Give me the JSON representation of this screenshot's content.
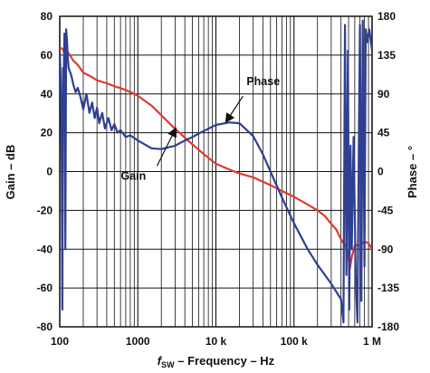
{
  "chart_data": {
    "type": "line",
    "title": "",
    "x_scale": "log",
    "xlim": [
      100,
      1000000
    ],
    "x_tick_values": [
      100,
      1000,
      10000,
      100000,
      1000000
    ],
    "x_tick_labels": [
      "100",
      "1000",
      "10 k",
      "100 k",
      "1 M"
    ],
    "xlabel_prefix": "f",
    "xlabel_sub": "SW",
    "xlabel_rest": " – Frequency – Hz",
    "ylabel_left": "Gain – dB",
    "ylim_left": [
      -80,
      80
    ],
    "yticks_left": [
      "80",
      "60",
      "40",
      "20",
      "0",
      "-20",
      "-40",
      "-60",
      "-80"
    ],
    "ylabel_right": "Phase – °",
    "ylim_right": [
      -180,
      180
    ],
    "yticks_right": [
      "180",
      "135",
      "90",
      "45",
      "0",
      "-45",
      "-90",
      "-135",
      "-180"
    ],
    "grid": true,
    "series": [
      {
        "name": "Gain",
        "axis": "left",
        "color": "#e03a2f",
        "points": [
          [
            100,
            64
          ],
          [
            110,
            63
          ],
          [
            120,
            59
          ],
          [
            130,
            61
          ],
          [
            150,
            57
          ],
          [
            170,
            55
          ],
          [
            200,
            51
          ],
          [
            250,
            49
          ],
          [
            300,
            47
          ],
          [
            400,
            45.5
          ],
          [
            500,
            44
          ],
          [
            600,
            43
          ],
          [
            700,
            42
          ],
          [
            800,
            41
          ],
          [
            1000,
            39
          ],
          [
            1500,
            34
          ],
          [
            2000,
            29
          ],
          [
            3000,
            22
          ],
          [
            4000,
            17.5
          ],
          [
            5000,
            14
          ],
          [
            7000,
            9
          ],
          [
            10000,
            4
          ],
          [
            15000,
            1
          ],
          [
            20000,
            -1
          ],
          [
            30000,
            -3
          ],
          [
            50000,
            -7
          ],
          [
            70000,
            -10
          ],
          [
            100000,
            -13
          ],
          [
            150000,
            -17
          ],
          [
            200000,
            -20
          ],
          [
            250000,
            -23
          ],
          [
            300000,
            -27
          ],
          [
            350000,
            -30
          ],
          [
            400000,
            -35
          ],
          [
            450000,
            -38
          ],
          [
            480000,
            -40
          ],
          [
            500000,
            -45
          ],
          [
            520000,
            -50
          ],
          [
            550000,
            -44
          ],
          [
            600000,
            -38
          ],
          [
            700000,
            -38
          ],
          [
            800000,
            -36
          ],
          [
            900000,
            -37
          ],
          [
            1000000,
            -40
          ]
        ]
      },
      {
        "name": "Phase",
        "axis": "right",
        "color": "#2f3f92",
        "points": [
          [
            100,
            140
          ],
          [
            103,
            105
          ],
          [
            106,
            10
          ],
          [
            108,
            -160
          ],
          [
            110,
            120
          ],
          [
            112,
            95
          ],
          [
            115,
            160
          ],
          [
            118,
            -90
          ],
          [
            121,
            165
          ],
          [
            124,
            150
          ],
          [
            127,
            130
          ],
          [
            130,
            120
          ],
          [
            140,
            112
          ],
          [
            150,
            100
          ],
          [
            160,
            92
          ],
          [
            170,
            97
          ],
          [
            185,
            86
          ],
          [
            200,
            72
          ],
          [
            220,
            90
          ],
          [
            240,
            68
          ],
          [
            260,
            80
          ],
          [
            280,
            62
          ],
          [
            300,
            74
          ],
          [
            320,
            56
          ],
          [
            350,
            68
          ],
          [
            380,
            50
          ],
          [
            420,
            62
          ],
          [
            460,
            48
          ],
          [
            500,
            55
          ],
          [
            550,
            45
          ],
          [
            600,
            48
          ],
          [
            700,
            40
          ],
          [
            800,
            42
          ],
          [
            1000,
            36
          ],
          [
            1500,
            27
          ],
          [
            2000,
            26
          ],
          [
            3000,
            30
          ],
          [
            4000,
            36
          ],
          [
            5000,
            40
          ],
          [
            7000,
            47
          ],
          [
            10000,
            54
          ],
          [
            15000,
            57
          ],
          [
            20000,
            56
          ],
          [
            30000,
            41
          ],
          [
            40000,
            20
          ],
          [
            50000,
            0
          ],
          [
            70000,
            -30
          ],
          [
            100000,
            -60
          ],
          [
            150000,
            -90
          ],
          [
            200000,
            -108
          ],
          [
            300000,
            -130
          ],
          [
            400000,
            -148
          ],
          [
            430000,
            -175
          ],
          [
            450000,
            170
          ],
          [
            470000,
            -120
          ],
          [
            490000,
            140
          ],
          [
            510000,
            -160
          ],
          [
            530000,
            30
          ],
          [
            550000,
            -90
          ],
          [
            580000,
            40
          ],
          [
            620000,
            -130
          ],
          [
            650000,
            -175
          ],
          [
            680000,
            60
          ],
          [
            700000,
            170
          ],
          [
            730000,
            -150
          ],
          [
            760000,
            175
          ],
          [
            800000,
            -110
          ],
          [
            830000,
            165
          ],
          [
            870000,
            150
          ],
          [
            920000,
            165
          ],
          [
            1000000,
            140
          ]
        ]
      }
    ],
    "annotations": [
      {
        "text": "Phase",
        "series": "Phase",
        "x": 13000,
        "y": 56
      },
      {
        "text": "Gain",
        "series": "Gain",
        "x": 3000,
        "y": 22
      }
    ]
  }
}
